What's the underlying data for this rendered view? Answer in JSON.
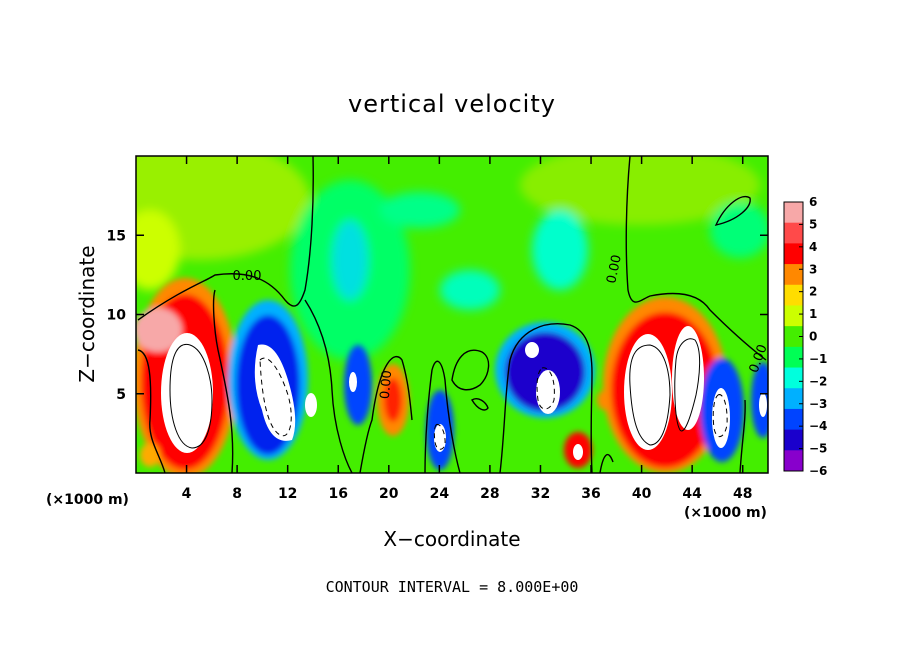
{
  "chart_data": {
    "type": "heatmap",
    "title": "vertical velocity",
    "xlabel": "X−coordinate",
    "ylabel": "Z−coordinate",
    "x_unit_left": "(×1000 m)",
    "x_unit_right": "(×1000 m)",
    "xlim": [
      0,
      50
    ],
    "ylim": [
      0,
      20
    ],
    "x_ticks": [
      4,
      8,
      12,
      16,
      20,
      24,
      28,
      32,
      36,
      40,
      44,
      48
    ],
    "y_ticks": [
      5,
      10,
      15
    ],
    "colorbar": {
      "ticks": [
        6,
        5,
        4,
        3,
        2,
        1,
        0,
        -1,
        -2,
        -3,
        -4,
        -5,
        -6
      ],
      "tick_labels": [
        "6",
        "5",
        "4",
        "3",
        "2",
        "1",
        "0",
        "−1",
        "−2",
        "−3",
        "−4",
        "−5",
        "−6"
      ],
      "colors": [
        "#f7a8a8",
        "#ff4a4a",
        "#ff0000",
        "#ff8800",
        "#ffdd00",
        "#ccff00",
        "#44ee00",
        "#00ff55",
        "#00ffdd",
        "#00b0ff",
        "#0044ff",
        "#1a00cc",
        "#8800cc"
      ],
      "range": [
        -6,
        6
      ]
    },
    "contour_interval": "CONTOUR INTERVAL = 8.000E+00",
    "contour_labels": [
      "0.00",
      "0.00",
      "0.00",
      "0.00"
    ],
    "features": [
      {
        "kind": "updraft",
        "x": 4.8,
        "z": 5.5,
        "value": 8
      },
      {
        "kind": "downdraft",
        "x": 10.5,
        "z": 5.5,
        "value": -8
      },
      {
        "kind": "downdraft",
        "x": 17.5,
        "z": 5.0,
        "value": -5
      },
      {
        "kind": "updraft",
        "x": 20.0,
        "z": 4.5,
        "value": 4
      },
      {
        "kind": "downdraft",
        "x": 24.0,
        "z": 2.5,
        "value": -6
      },
      {
        "kind": "downdraft",
        "x": 31.5,
        "z": 6.5,
        "value": -7
      },
      {
        "kind": "updraft",
        "x": 35.0,
        "z": 1.5,
        "value": 5
      },
      {
        "kind": "updraft",
        "x": 40.8,
        "z": 5.0,
        "value": 8
      },
      {
        "kind": "updraft",
        "x": 43.5,
        "z": 5.5,
        "value": 8
      },
      {
        "kind": "downdraft",
        "x": 46.5,
        "z": 4.0,
        "value": -7
      },
      {
        "kind": "downdraft",
        "x": 49.5,
        "z": 4.5,
        "value": -5
      },
      {
        "kind": "weak-downdraft",
        "x": 17.0,
        "z": 13.5,
        "value": -2
      },
      {
        "kind": "weak-updraft",
        "x": 8.0,
        "z": 16.5,
        "value": 1.5
      }
    ]
  }
}
